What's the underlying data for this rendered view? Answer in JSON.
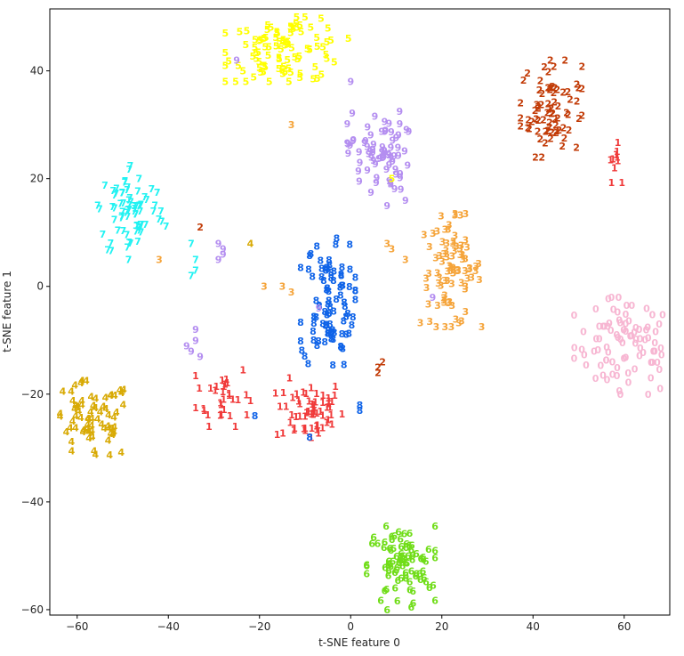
{
  "chart_data": {
    "type": "scatter",
    "title": "",
    "xlabel": "t-SNE feature 0",
    "ylabel": "t-SNE feature 1",
    "xlim": [
      -66,
      70
    ],
    "ylim": [
      -61,
      51.5
    ],
    "x_ticks": [
      -60,
      -40,
      -20,
      0,
      20,
      40,
      60
    ],
    "y_ticks": [
      -60,
      -40,
      -20,
      0,
      20,
      40
    ],
    "x_tick_labels": [
      "−60",
      "−40",
      "−20",
      "0",
      "20",
      "40",
      "60"
    ],
    "y_tick_labels": [
      "−60",
      "−40",
      "−20",
      "0",
      "20",
      "40"
    ],
    "grid": false,
    "legend": "none",
    "marker": "digit text label",
    "clusters": [
      {
        "label": "0",
        "color": "#f7b6d2",
        "center": [
          61,
          -11
        ],
        "spread": [
          8,
          6
        ],
        "count": 95
      },
      {
        "label": "1",
        "color": "#f03a3a",
        "center": [
          -9,
          -23
        ],
        "spread": [
          5,
          4
        ],
        "count": 60
      },
      {
        "label": "1",
        "color": "#f03a3a",
        "center": [
          -28,
          -20
        ],
        "spread": [
          4,
          4
        ],
        "count": 32
      },
      {
        "label": "1",
        "color": "#f03a3a",
        "center": [
          58,
          23
        ],
        "spread": [
          1,
          2.5
        ],
        "count": 10
      },
      {
        "label": "2",
        "color": "#c23b07",
        "center": [
          44,
          33
        ],
        "spread": [
          4.5,
          6
        ],
        "count": 75
      },
      {
        "label": "3",
        "color": "#f5a43a",
        "center": [
          22,
          3
        ],
        "spread": [
          4.5,
          7
        ],
        "count": 85
      },
      {
        "label": "4",
        "color": "#d8aa05",
        "center": [
          -57,
          -25
        ],
        "spread": [
          6,
          5
        ],
        "count": 75
      },
      {
        "label": "5",
        "color": "#ffff00",
        "center": [
          -14,
          44
        ],
        "spread": [
          9,
          4
        ],
        "count": 95
      },
      {
        "label": "6",
        "color": "#70dd18",
        "center": [
          11,
          -52
        ],
        "spread": [
          5,
          5
        ],
        "count": 85
      },
      {
        "label": "7",
        "color": "#22f2f2",
        "center": [
          -48,
          14
        ],
        "spread": [
          5,
          6
        ],
        "count": 75
      },
      {
        "label": "8",
        "color": "#0f63e8",
        "center": [
          -5,
          -3
        ],
        "spread": [
          4,
          8
        ],
        "count": 90
      },
      {
        "label": "9",
        "color": "#b48ef0",
        "center": [
          6,
          25
        ],
        "spread": [
          4.5,
          5
        ],
        "count": 75
      }
    ],
    "points": [
      {
        "label": "2",
        "color": "#c23b07",
        "x": -33,
        "y": 11
      },
      {
        "label": "3",
        "color": "#f5a43a",
        "x": -42,
        "y": 5
      },
      {
        "label": "3",
        "color": "#f5a43a",
        "x": -13,
        "y": 30
      },
      {
        "label": "3",
        "color": "#f5a43a",
        "x": -19,
        "y": 0
      },
      {
        "label": "3",
        "color": "#f5a43a",
        "x": -15,
        "y": 0
      },
      {
        "label": "3",
        "color": "#f5a43a",
        "x": -13,
        "y": -1
      },
      {
        "label": "3",
        "color": "#f5a43a",
        "x": 8,
        "y": 8
      },
      {
        "label": "3",
        "color": "#f5a43a",
        "x": 9,
        "y": 7
      },
      {
        "label": "3",
        "color": "#f5a43a",
        "x": 12,
        "y": 5
      },
      {
        "label": "4",
        "color": "#d8aa05",
        "x": -22,
        "y": 8
      },
      {
        "label": "5",
        "color": "#ffff00",
        "x": 9,
        "y": 20
      },
      {
        "label": "6",
        "color": "#70dd18",
        "x": 8,
        "y": -60
      },
      {
        "label": "7",
        "color": "#22f2f2",
        "x": -35,
        "y": 8
      },
      {
        "label": "7",
        "color": "#22f2f2",
        "x": -34,
        "y": 5
      },
      {
        "label": "7",
        "color": "#22f2f2",
        "x": -34,
        "y": 3
      },
      {
        "label": "7",
        "color": "#22f2f2",
        "x": -35,
        "y": 2
      },
      {
        "label": "8",
        "color": "#0f63e8",
        "x": -21,
        "y": -24
      },
      {
        "label": "8",
        "color": "#0f63e8",
        "x": 2,
        "y": -22
      },
      {
        "label": "8",
        "color": "#0f63e8",
        "x": 2,
        "y": -23
      },
      {
        "label": "8",
        "color": "#0f63e8",
        "x": -9,
        "y": -28
      },
      {
        "label": "9",
        "color": "#b48ef0",
        "x": -25,
        "y": 42
      },
      {
        "label": "9",
        "color": "#b48ef0",
        "x": 0,
        "y": 38
      },
      {
        "label": "9",
        "color": "#b48ef0",
        "x": 12,
        "y": 16
      },
      {
        "label": "9",
        "color": "#b48ef0",
        "x": 8,
        "y": 15
      },
      {
        "label": "9",
        "color": "#b48ef0",
        "x": -29,
        "y": 8
      },
      {
        "label": "9",
        "color": "#b48ef0",
        "x": -28,
        "y": 7
      },
      {
        "label": "9",
        "color": "#b48ef0",
        "x": -29,
        "y": 5
      },
      {
        "label": "9",
        "color": "#b48ef0",
        "x": -28,
        "y": 6
      },
      {
        "label": "9",
        "color": "#b48ef0",
        "x": -34,
        "y": -10
      },
      {
        "label": "9",
        "color": "#b48ef0",
        "x": -35,
        "y": -12
      },
      {
        "label": "9",
        "color": "#b48ef0",
        "x": -33,
        "y": -13
      },
      {
        "label": "9",
        "color": "#b48ef0",
        "x": -34,
        "y": -8
      },
      {
        "label": "9",
        "color": "#b48ef0",
        "x": -36,
        "y": -11
      },
      {
        "label": "9",
        "color": "#b48ef0",
        "x": -7,
        "y": -4
      },
      {
        "label": "9",
        "color": "#b48ef0",
        "x": 18,
        "y": -2
      },
      {
        "label": "2",
        "color": "#c23b07",
        "x": 6,
        "y": -15
      },
      {
        "label": "2",
        "color": "#c23b07",
        "x": 7,
        "y": -14
      },
      {
        "label": "2",
        "color": "#c23b07",
        "x": 6,
        "y": -16
      }
    ]
  }
}
